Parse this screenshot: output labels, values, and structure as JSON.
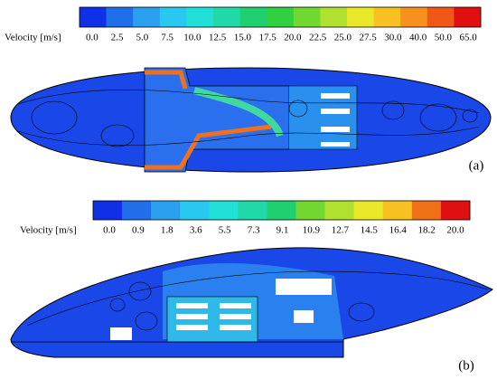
{
  "colorbar_a": {
    "label": "Velocity [m/s]",
    "ticks": [
      "0.0",
      "2.5",
      "5.0",
      "7.5",
      "10.0",
      "12.5",
      "15.0",
      "17.5",
      "20.0",
      "22.5",
      "25.0",
      "27.5",
      "30.0",
      "40.0",
      "50.0",
      "65.0"
    ],
    "colors": [
      "#1030e8",
      "#1f6fe8",
      "#2aa0ee",
      "#28c8f0",
      "#20e0d8",
      "#20d8a8",
      "#20d070",
      "#30d040",
      "#70d830",
      "#b0e030",
      "#e8e828",
      "#f8c020",
      "#f89020",
      "#f05818",
      "#e01010"
    ]
  },
  "panel_a": {
    "label": "(a)"
  },
  "colorbar_b": {
    "label": "Velocity [m/s]",
    "ticks": [
      "0.0",
      "0.9",
      "1.8",
      "3.6",
      "5.5",
      "7.3",
      "9.1",
      "10.9",
      "12.7",
      "14.5",
      "16.4",
      "18.2",
      "20.0"
    ],
    "colors": [
      "#1030e8",
      "#1f6fe8",
      "#2aa0ee",
      "#28c8f0",
      "#20e0d8",
      "#20d8a8",
      "#20d070",
      "#70d830",
      "#b0e030",
      "#e8e828",
      "#f8c020",
      "#f07018",
      "#e01010"
    ]
  },
  "panel_b": {
    "label": "(b)"
  }
}
